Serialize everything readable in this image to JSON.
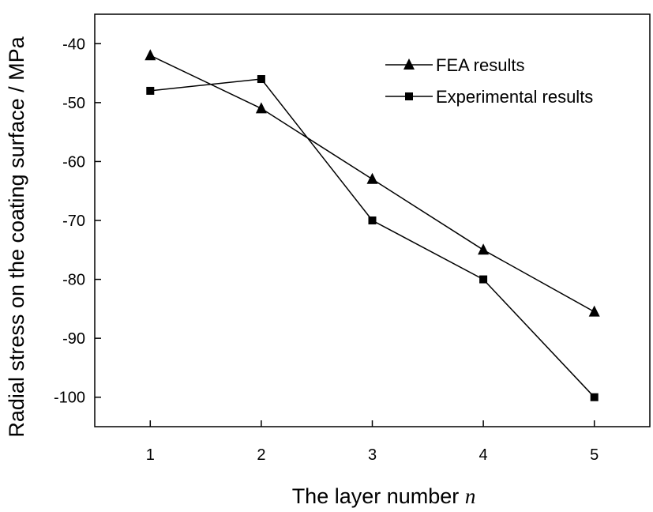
{
  "chart_data": {
    "type": "line",
    "title": "",
    "xlabel": "The layer number",
    "xlabel_var": "n",
    "ylabel": "Radial stress on the coating surface / MPa",
    "xlim": [
      0.5,
      5.5
    ],
    "ylim": [
      -105,
      -35
    ],
    "xticks": [
      1,
      2,
      3,
      4,
      5
    ],
    "xtick_labels": [
      "1",
      "2",
      "3",
      "4",
      "5"
    ],
    "yticks": [
      -40,
      -50,
      -60,
      -70,
      -80,
      -90,
      -100
    ],
    "ytick_labels": [
      "-40",
      "-50",
      "-60",
      "-70",
      "-80",
      "-90",
      "-100"
    ],
    "grid": false,
    "legend_position": "top-right",
    "x": [
      1,
      2,
      3,
      4,
      5
    ],
    "series": [
      {
        "name": "FEA results",
        "marker": "triangle",
        "color": "#000000",
        "values": [
          -42,
          -51,
          -63,
          -75,
          -85.5
        ]
      },
      {
        "name": "Experimental results",
        "marker": "square",
        "color": "#000000",
        "values": [
          -48,
          -46,
          -70,
          -80,
          -100
        ]
      }
    ]
  }
}
